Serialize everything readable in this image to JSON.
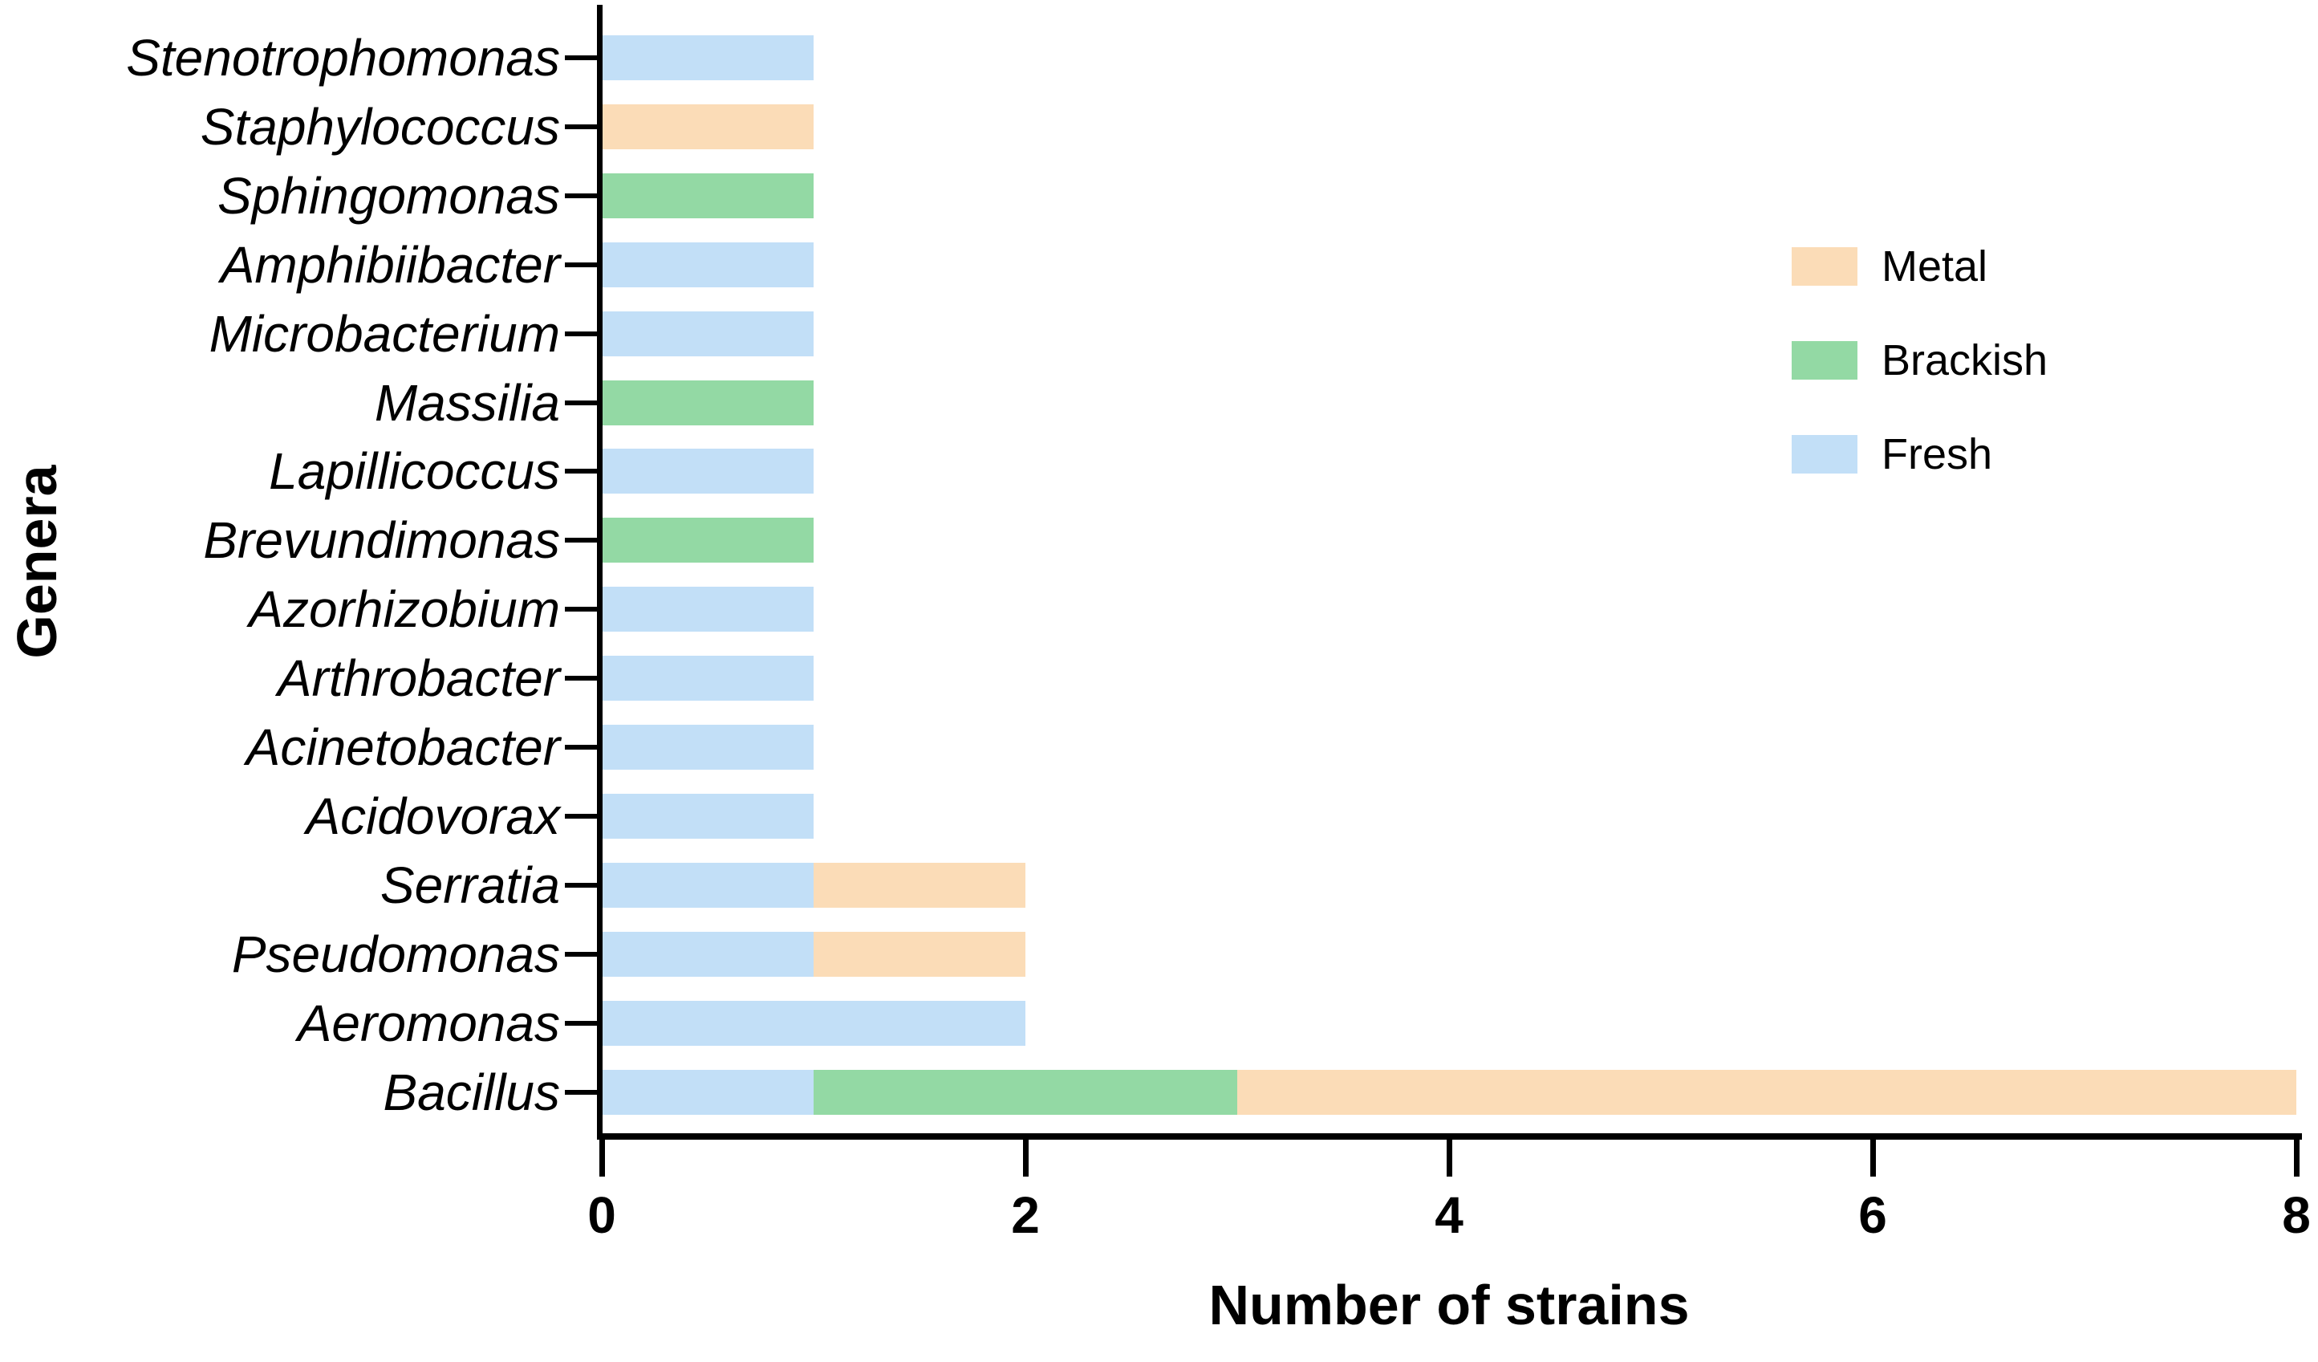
{
  "chart_data": {
    "type": "bar",
    "orientation": "horizontal",
    "stacked": true,
    "title": "",
    "xlabel": "Number of strains",
    "ylabel": "Genera",
    "xlim": [
      0,
      8
    ],
    "xticks": [
      0,
      2,
      4,
      6,
      8
    ],
    "grid": false,
    "legend_position": "upper-right",
    "categories": [
      "Stenotrophomonas",
      "Staphylococcus",
      "Sphingomonas",
      "Amphibiibacter",
      "Microbacterium",
      "Massilia",
      "Lapillicoccus",
      "Brevundimonas",
      "Azorhizobium",
      "Arthrobacter",
      "Acinetobacter",
      "Acidovorax",
      "Serratia",
      "Pseudomonas",
      "Aeromonas",
      "Bacillus"
    ],
    "stack_order": [
      "Fresh",
      "Brackish",
      "Metal"
    ],
    "series": [
      {
        "name": "Metal",
        "color": "#FBDCB7",
        "values": [
          0,
          1,
          0,
          0,
          0,
          0,
          0,
          0,
          0,
          0,
          0,
          0,
          1,
          1,
          0,
          5
        ]
      },
      {
        "name": "Brackish",
        "color": "#93D9A4",
        "values": [
          0,
          0,
          1,
          0,
          0,
          1,
          0,
          1,
          0,
          0,
          0,
          0,
          0,
          0,
          0,
          2
        ]
      },
      {
        "name": "Fresh",
        "color": "#C2DFF7",
        "values": [
          1,
          0,
          0,
          1,
          1,
          0,
          1,
          0,
          1,
          1,
          1,
          1,
          1,
          1,
          2,
          1
        ]
      }
    ]
  },
  "legend": {
    "items": [
      {
        "label": "Metal",
        "color": "#FBDCB7"
      },
      {
        "label": "Brackish",
        "color": "#93D9A4"
      },
      {
        "label": "Fresh",
        "color": "#C2DFF7"
      }
    ]
  },
  "colors": {
    "axis": "#000000",
    "background": "#FFFFFF"
  }
}
